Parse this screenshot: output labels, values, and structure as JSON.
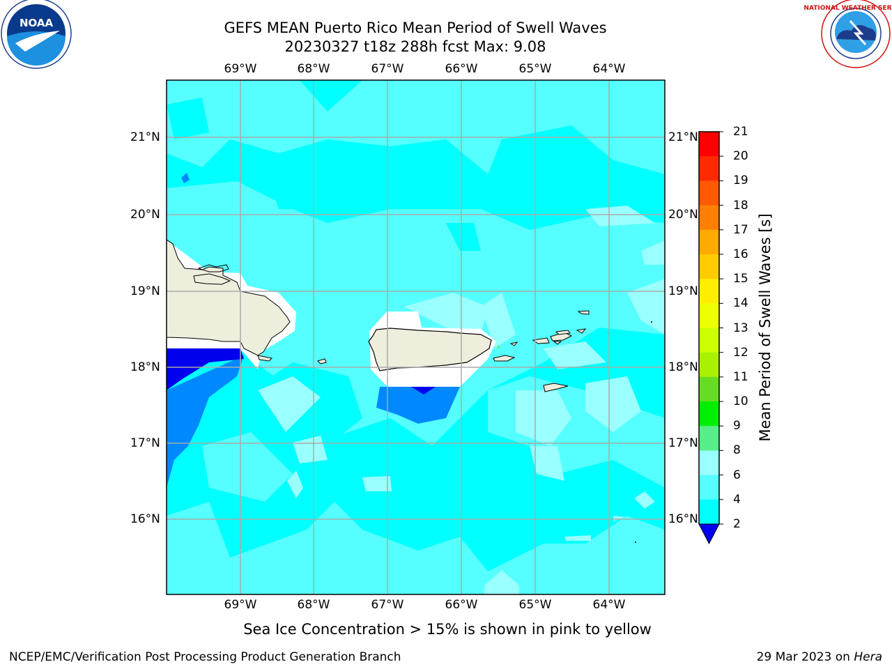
{
  "title_line1": "GEFS MEAN Puerto Rico Mean Period of Swell Waves",
  "title_line2": "20230327 t18z 288h fcst   Max: 9.08",
  "logos": {
    "left": "NOAA",
    "right": "NATIONAL WEATHER SERVICE"
  },
  "map": {
    "lon_labels": [
      "69°W",
      "68°W",
      "67°W",
      "66°W",
      "65°W",
      "64°W"
    ],
    "lat_labels": [
      "21°N",
      "20°N",
      "19°N",
      "18°N",
      "17°N",
      "16°N"
    ]
  },
  "colorbar": {
    "title": "Mean Period of Swell Waves [s]",
    "ticks": [
      "21",
      "20",
      "19",
      "18",
      "17",
      "16",
      "15",
      "14",
      "13",
      "12",
      "11",
      "10",
      "9",
      "8",
      "6",
      "4",
      "2"
    ],
    "colors": [
      "#ff0000",
      "#ff2a00",
      "#ff5a00",
      "#ff8000",
      "#ffaa00",
      "#ffcc00",
      "#ffee00",
      "#eeff00",
      "#ccff00",
      "#aaf000",
      "#66dd22",
      "#00ee00",
      "#55ee88",
      "#99ffff",
      "#55ffff",
      "#00ffff",
      "#0088ff",
      "#0000ee"
    ]
  },
  "note": "Sea Ice Concentration > 15% is shown in pink to yellow",
  "footer_left": "NCEP/EMC/Verification Post Processing Product Generation Branch",
  "footer_date": "29 Mar 2023 on ",
  "footer_machine": "Hera"
}
